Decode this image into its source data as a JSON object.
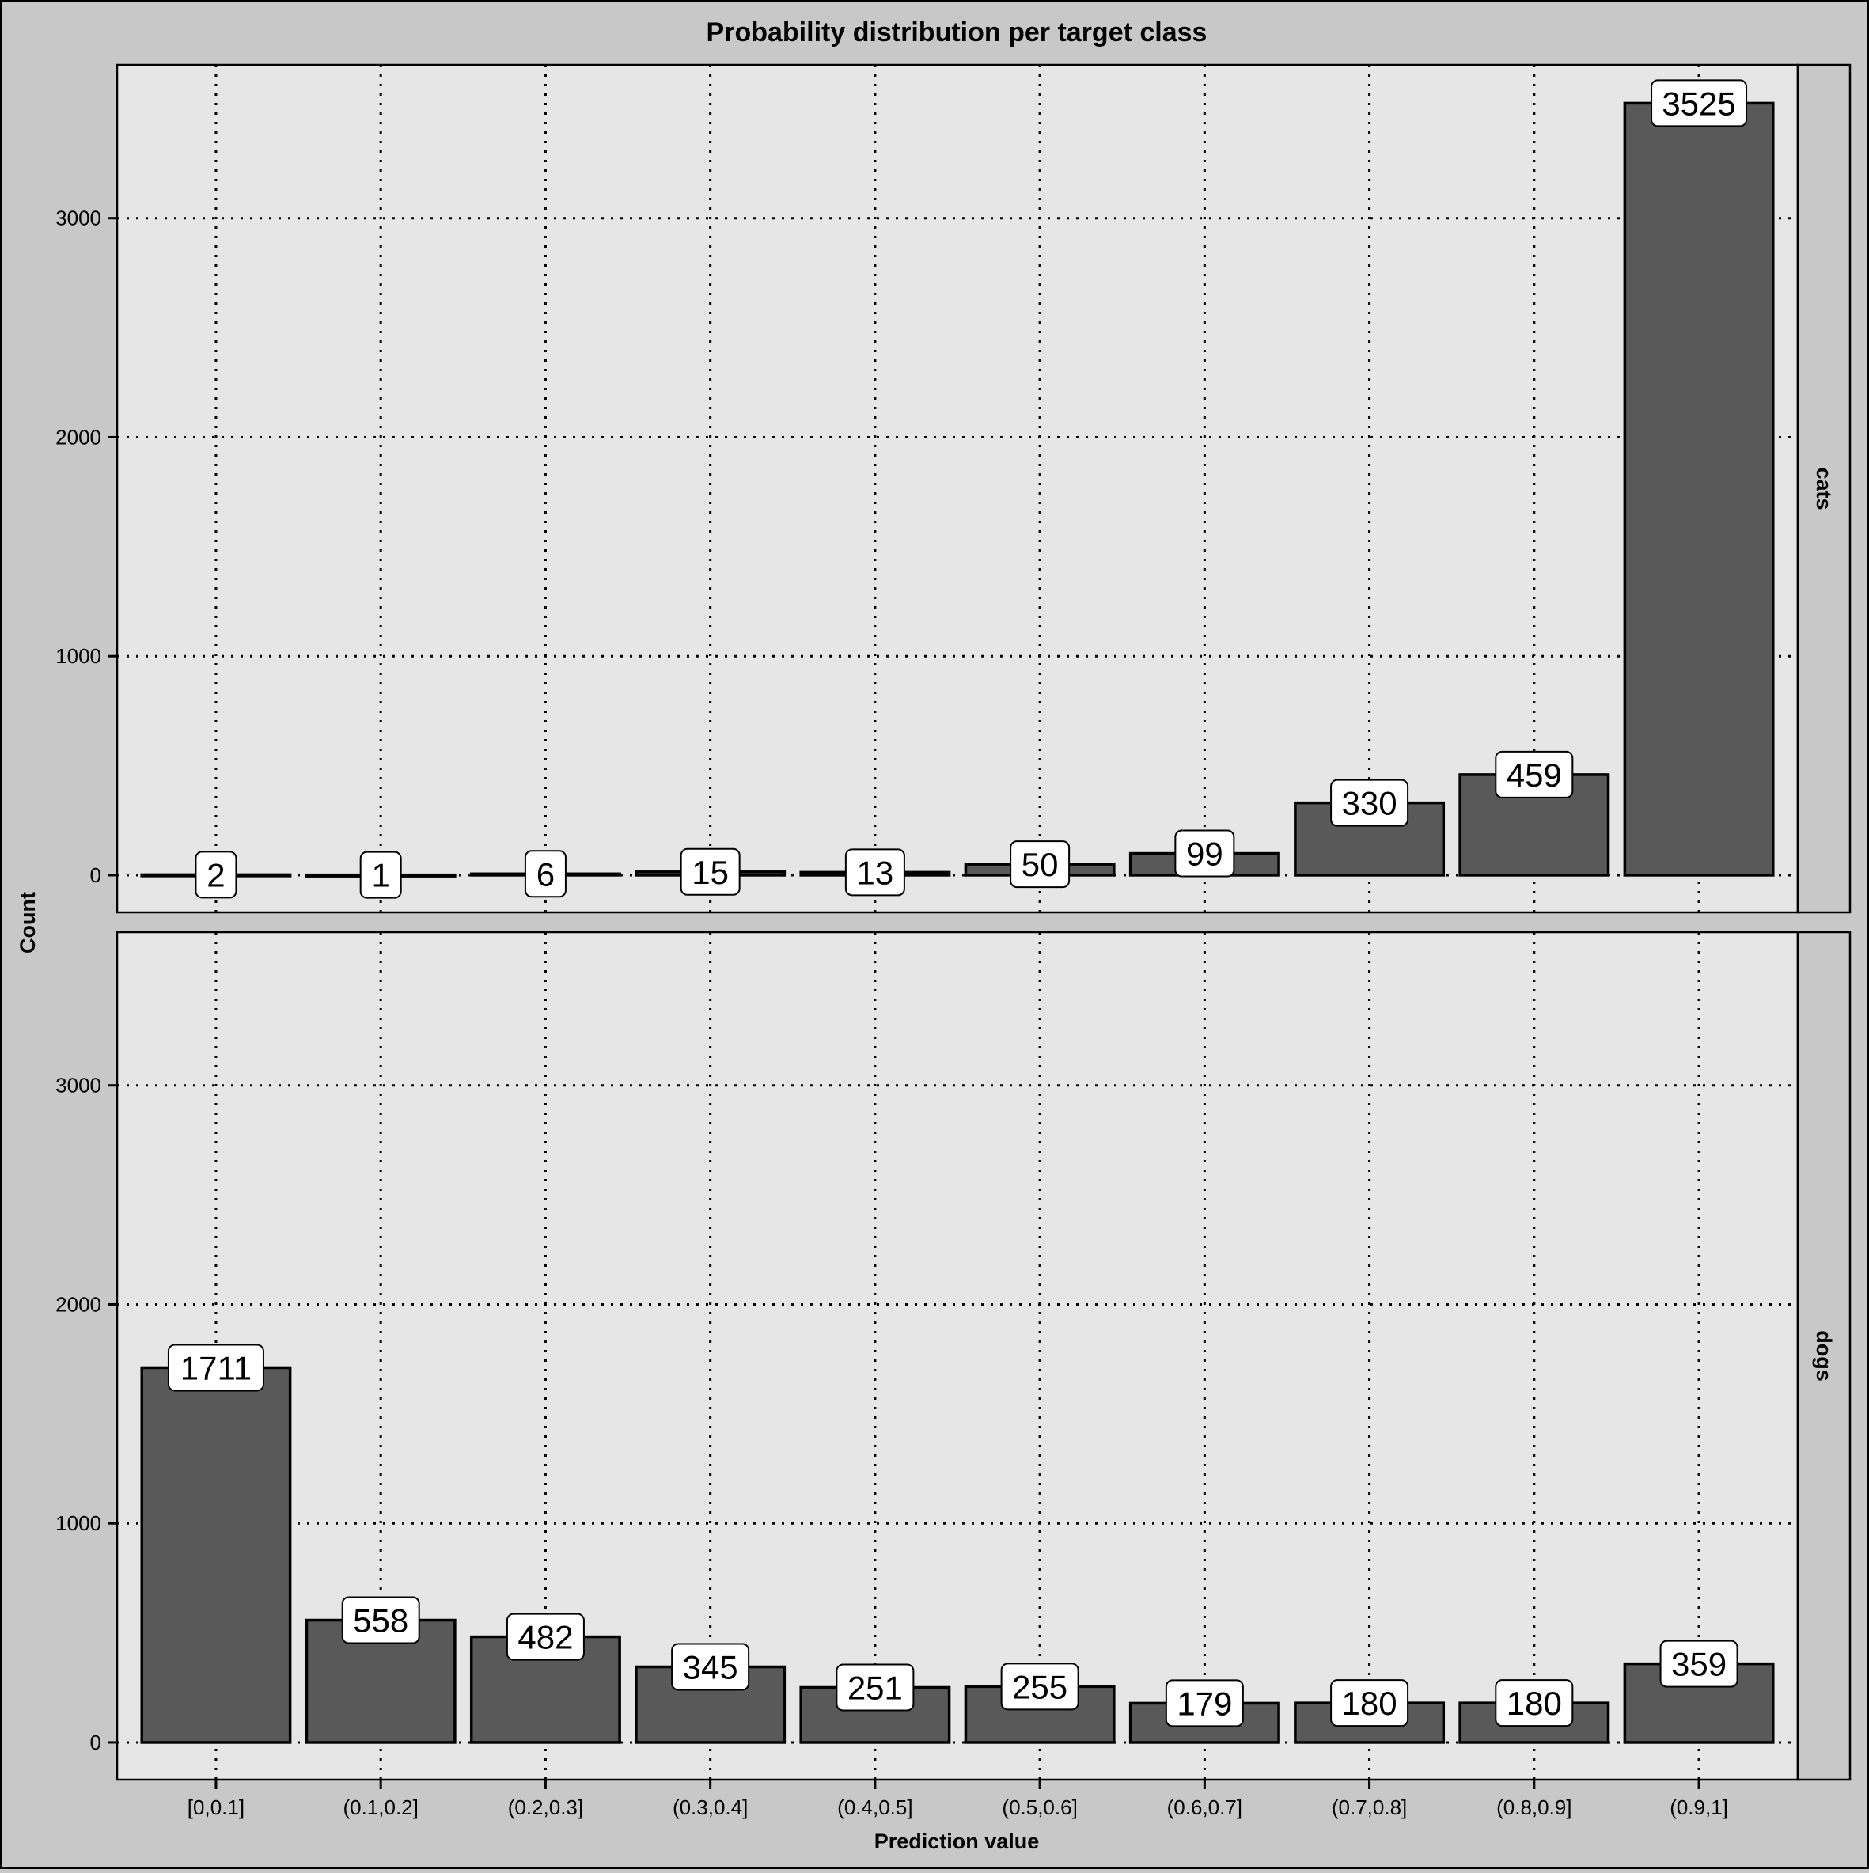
{
  "chart_data": {
    "type": "bar",
    "title": "Probability distribution per target class",
    "xlabel": "Prediction value",
    "ylabel": "Count",
    "categories": [
      "[0,0.1]",
      "(0.1,0.2]",
      "(0.2,0.3]",
      "(0.3,0.4]",
      "(0.4,0.5]",
      "(0.5,0.6]",
      "(0.6,0.7]",
      "(0.7,0.8]",
      "(0.8,0.9]",
      "(0.9,1]"
    ],
    "ylim": [
      -170,
      3700
    ],
    "yticks": [
      0,
      1000,
      2000,
      3000
    ],
    "grid": true,
    "grid_style": "dotted",
    "facets": [
      {
        "name": "cats",
        "values": [
          2,
          1,
          6,
          15,
          13,
          50,
          99,
          330,
          459,
          3525
        ]
      },
      {
        "name": "dogs",
        "values": [
          1711,
          558,
          482,
          345,
          251,
          255,
          179,
          180,
          180,
          359
        ]
      }
    ],
    "colors": {
      "bar_fill": "#595959",
      "bar_stroke": "#000000",
      "panel_bg": "#e6e6e6",
      "page_bg": "#c8c8c8",
      "strip_bg": "#c8c8c8",
      "label_bg": "#ffffff"
    }
  }
}
